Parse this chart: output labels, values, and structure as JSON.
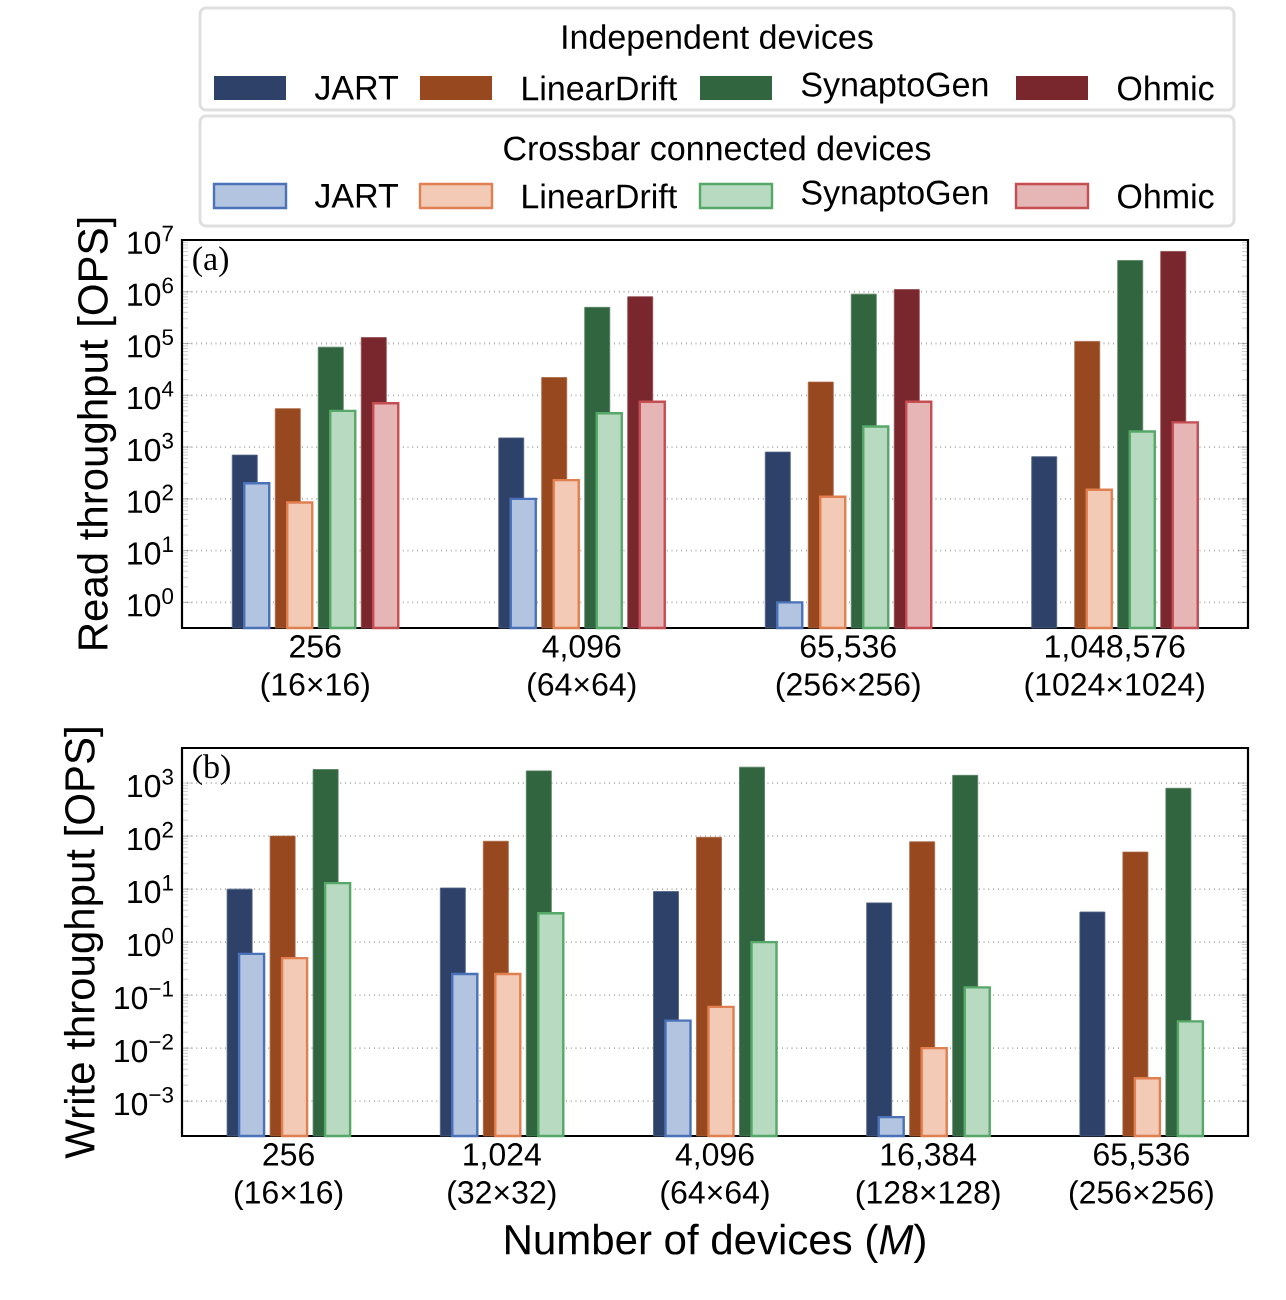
{
  "chart_data": [
    {
      "type": "bar",
      "ylabel": "Read throughput [OPS]",
      "legend_title": "Independent devices",
      "annotations": [
        "(a)",
        "Crossbar connected devices"
      ],
      "categories": [
        "256 (16×16)",
        "4,096 (64×64)",
        "65,536 (256×256)",
        "1,048,576 (1024×1024)"
      ],
      "log": true,
      "grid": "y",
      "legend": "top",
      "ylim": [
        0.32,
        10000000
      ],
      "yticks": [
        {
          "value": 1,
          "label": "10$^{0}$"
        },
        {
          "value": 10,
          "label": "10$^{1}$"
        },
        {
          "value": 100,
          "label": "10$^{2}$"
        },
        {
          "value": 1000,
          "label": "10$^{3}$"
        },
        {
          "value": 10000,
          "label": "10$^{4}$"
        },
        {
          "value": 100000,
          "label": "10$^{5}$"
        },
        {
          "value": 1000000,
          "label": "10$^{6}$"
        },
        {
          "value": 10000000,
          "label": "10$^{7}$"
        }
      ],
      "series": [
        {
          "name": "JART",
          "color": "#2e4269",
          "values": [
            700,
            1500,
            800,
            650
          ]
        },
        {
          "name": "LinearDrift",
          "color": "#97481e",
          "values": [
            5500,
            22000,
            18000,
            110000
          ]
        },
        {
          "name": "SynaptoGen",
          "color": "#30653f",
          "values": [
            85000,
            500000,
            900000,
            4000000
          ]
        },
        {
          "name": "Ohmic",
          "color": "#7a262d",
          "values": [
            130000,
            800000,
            1100000,
            6000000
          ]
        },
        {
          "name": "JART",
          "color": "#4a72b8",
          "values": [
            200,
            100,
            1,
            null
          ]
        },
        {
          "name": "LinearDrift",
          "color": "#e08050",
          "values": [
            85,
            230,
            110,
            150
          ]
        },
        {
          "name": "SynaptoGen",
          "color": "#55a868",
          "values": [
            5000,
            4500,
            2500,
            2000
          ]
        },
        {
          "name": "Ohmic",
          "color": "#c44e52",
          "values": [
            7000,
            7500,
            7500,
            3000
          ]
        }
      ]
    },
    {
      "type": "bar",
      "ylabel": "Write throughput [OPS]",
      "xlabel": "Number of devices (*M*)",
      "annotations": [
        "(b)"
      ],
      "categories": [
        "256 (16×16)",
        "1,024 (32×32)",
        "4,096 (64×64)",
        "16,384 (128×128)",
        "65,536 (256×256)"
      ],
      "log": true,
      "grid": "y",
      "ylim": [
        0.00022,
        4600
      ],
      "yticks": [
        {
          "value": 0.001,
          "label": "10$^{−3}$"
        },
        {
          "value": 0.01,
          "label": "10$^{−2}$"
        },
        {
          "value": 0.1,
          "label": "10$^{−1}$"
        },
        {
          "value": 1,
          "label": "10$^{0}$"
        },
        {
          "value": 10,
          "label": "10$^{1}$"
        },
        {
          "value": 100,
          "label": "10$^{2}$"
        },
        {
          "value": 1000,
          "label": "10$^{3}$"
        }
      ],
      "series": [
        {
          "color": "#2e4269",
          "values": [
            10,
            10.5,
            9,
            5.5,
            3.7
          ]
        },
        {
          "color": "#97481e",
          "values": [
            100,
            80,
            95,
            78,
            50
          ]
        },
        {
          "color": "#30653f",
          "values": [
            1800,
            1700,
            2000,
            1400,
            800
          ]
        },
        {
          "color": "#4a72b8",
          "values": [
            0.6,
            0.25,
            0.033,
            0.0005,
            null
          ]
        },
        {
          "color": "#e08050",
          "values": [
            0.5,
            0.25,
            0.06,
            0.01,
            0.0027
          ]
        },
        {
          "color": "#55a868",
          "values": [
            13,
            3.5,
            1.0,
            0.14,
            0.032
          ]
        }
      ]
    }
  ]
}
